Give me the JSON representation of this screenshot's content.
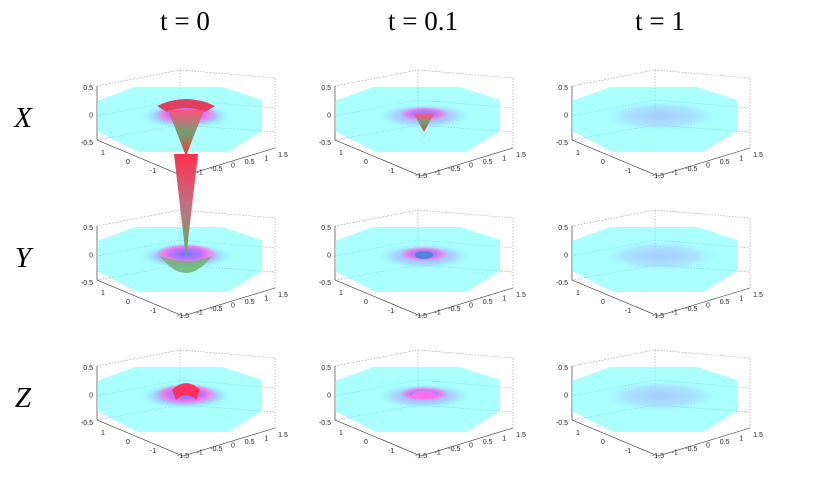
{
  "columns": [
    "t = 0",
    "t = 0.1",
    "t = 1"
  ],
  "rows": [
    "X",
    "Y",
    "Z"
  ],
  "axes": {
    "zticks": [
      "0.5",
      "0",
      "-0.5"
    ],
    "yticks": [
      "1",
      "0",
      "-1"
    ],
    "xticks": [
      "-1.5",
      "-1",
      "-0.5",
      "0",
      "0.5",
      "1",
      "1.5"
    ]
  }
}
